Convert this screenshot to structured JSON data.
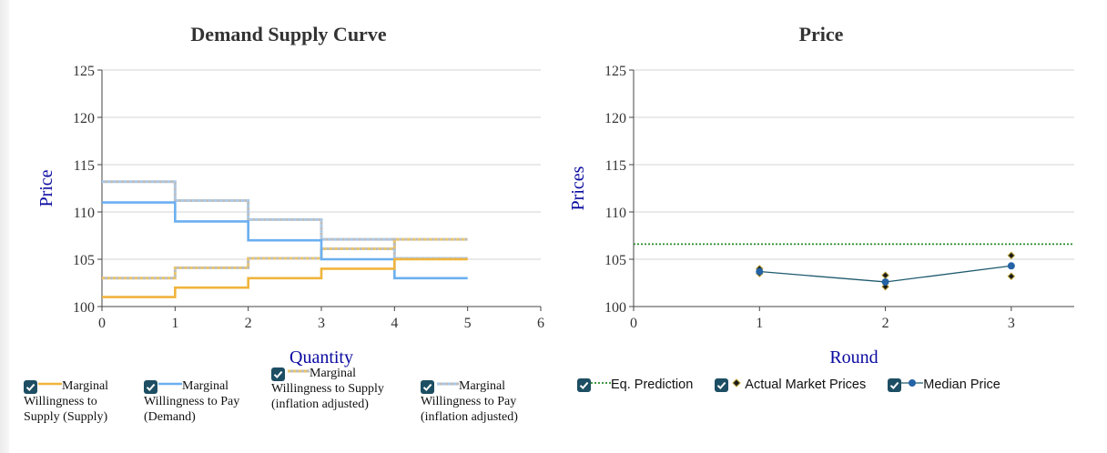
{
  "colors": {
    "supply": "#f0b43c",
    "demand": "#6aaff0",
    "supply_adj": "#e8c46a",
    "demand_adj": "#a9c8e8",
    "eq_prediction": "#2a8c2a",
    "median": "#2563a6",
    "median_line": "#1e5a6e",
    "actual": "#1a1a1a",
    "title": "#333333",
    "axis_label": "#0a0aa0",
    "checkbox": "#1d4e63"
  },
  "legend_left": [
    {
      "label": "Marginal Willingness to Supply (Supply)",
      "icon": "solid-line-icon",
      "series": "supply"
    },
    {
      "label": "Marginal Willingness to Pay (Demand)",
      "icon": "solid-line-icon",
      "series": "demand"
    },
    {
      "label": "Marginal Willingness to Supply (inflation adjusted)",
      "icon": "dotted-line-icon",
      "series": "supply_adj"
    },
    {
      "label": "Marginal Willingness to Pay (inflation adjusted)",
      "icon": "dotted-line-icon",
      "series": "demand_adj"
    }
  ],
  "legend_right": [
    {
      "label": "Eq. Prediction",
      "icon": "dotted-line-icon"
    },
    {
      "label": "Actual Market Prices",
      "icon": "diamond-marker-icon"
    },
    {
      "label": "Median Price",
      "icon": "circle-marker-line-icon"
    }
  ],
  "chart_data": [
    {
      "type": "line",
      "style": "step",
      "title": "Demand Supply Curve",
      "xlabel": "Quantity",
      "ylabel": "Price",
      "xlim": [
        0,
        6
      ],
      "ylim": [
        100,
        125
      ],
      "xticks": [
        0,
        1,
        2,
        3,
        4,
        5,
        6
      ],
      "yticks": [
        100,
        105,
        110,
        115,
        120,
        125
      ],
      "grid": true,
      "legend_position": "bottom",
      "series": [
        {
          "name": "Marginal Willingness to Supply (Supply)",
          "key": "supply",
          "dashed": false,
          "x": [
            0,
            1,
            2,
            3,
            4,
            5
          ],
          "y": [
            101,
            102,
            103,
            104,
            105,
            105
          ]
        },
        {
          "name": "Marginal Willingness to Pay (Demand)",
          "key": "demand",
          "dashed": false,
          "x": [
            0,
            1,
            2,
            3,
            4,
            5
          ],
          "y": [
            111,
            109,
            107,
            105,
            103,
            103
          ]
        },
        {
          "name": "Marginal Willingness to Supply (inflation adjusted)",
          "key": "supply_adj",
          "dashed": true,
          "x": [
            0,
            1,
            2,
            3,
            4,
            5
          ],
          "y": [
            103,
            104.1,
            105.1,
            106.1,
            107.1,
            107.1
          ]
        },
        {
          "name": "Marginal Willingness to Pay (inflation adjusted)",
          "key": "demand_adj",
          "dashed": true,
          "x": [
            0,
            1,
            2,
            3,
            4,
            5
          ],
          "y": [
            113.2,
            111.2,
            109.2,
            107.1,
            105.1,
            105.1
          ]
        }
      ]
    },
    {
      "type": "line",
      "title": "Price",
      "xlabel": "Round",
      "ylabel": "Prices",
      "xlim": [
        0,
        3.5
      ],
      "ylim": [
        100,
        125
      ],
      "xticks": [
        0,
        1,
        2,
        3
      ],
      "yticks": [
        100,
        105,
        110,
        115,
        120,
        125
      ],
      "grid": true,
      "legend_position": "bottom",
      "eq_prediction": 106.6,
      "actual_market_prices": [
        {
          "x": 1,
          "y": 104.0
        },
        {
          "x": 1,
          "y": 103.5
        },
        {
          "x": 2,
          "y": 103.3
        },
        {
          "x": 2,
          "y": 102.1
        },
        {
          "x": 3,
          "y": 105.4
        },
        {
          "x": 3,
          "y": 103.2
        }
      ],
      "median_price": {
        "x": [
          1,
          2,
          3
        ],
        "y": [
          103.7,
          102.6,
          104.3
        ]
      }
    }
  ]
}
